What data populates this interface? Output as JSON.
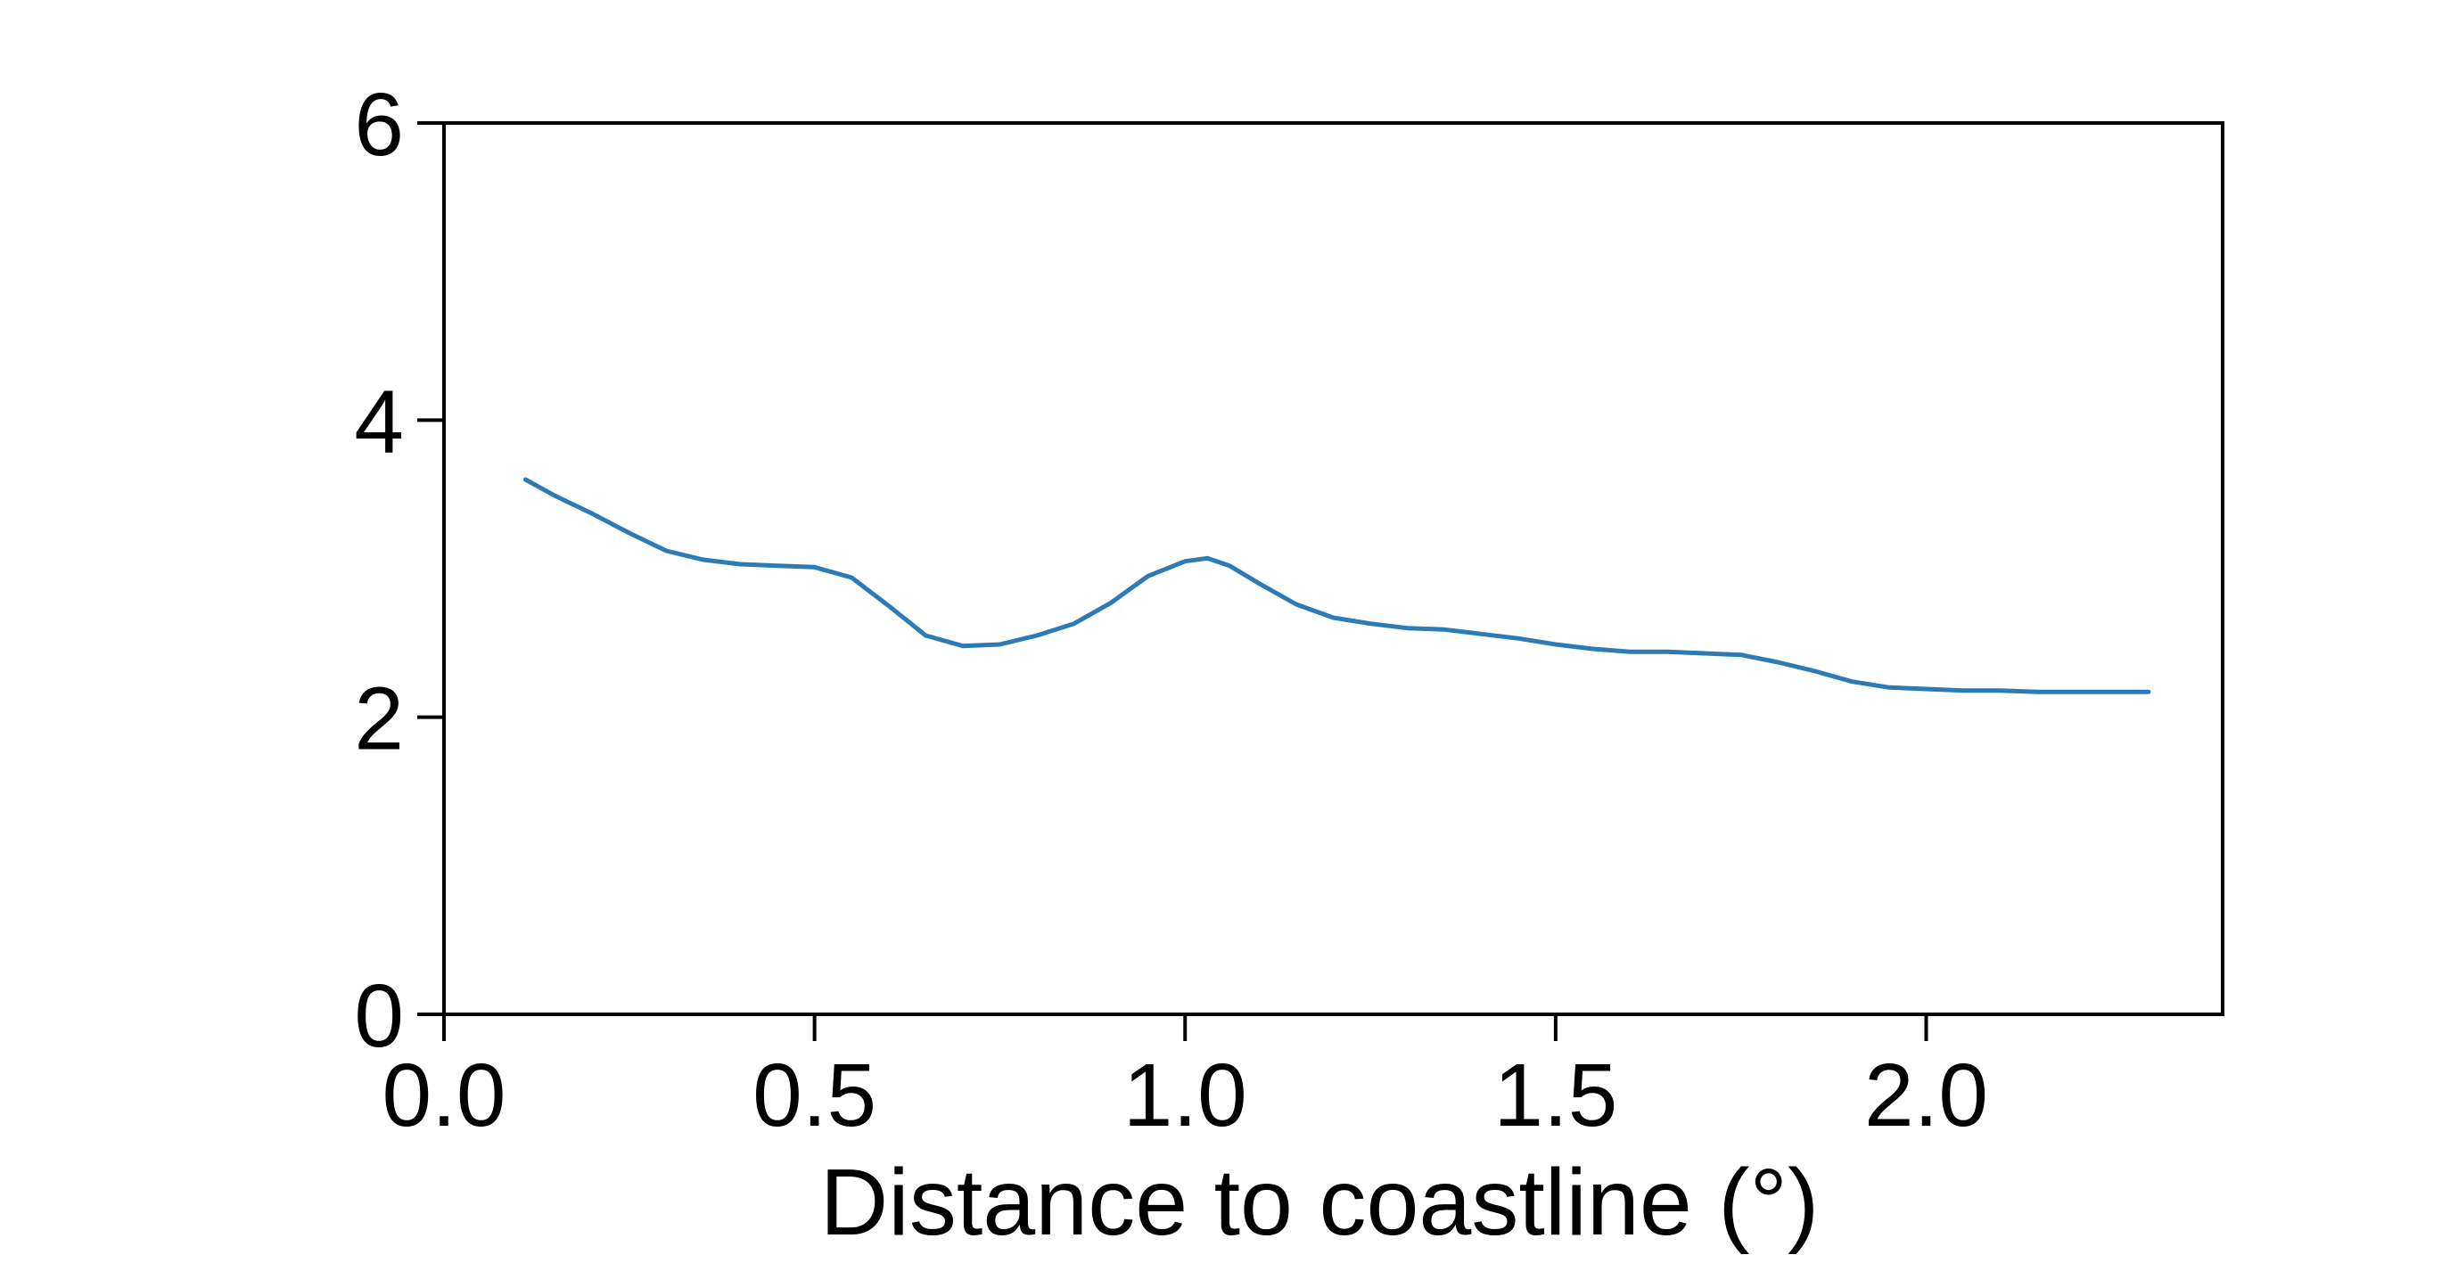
{
  "chart_data": {
    "type": "line",
    "title": "",
    "xlabel": "Distance to coastline (°)",
    "ylabel": "",
    "xlim": [
      0.0,
      2.4
    ],
    "ylim": [
      0,
      6
    ],
    "x_ticks": [
      0.0,
      0.5,
      1.0,
      1.5,
      2.0
    ],
    "x_tick_labels": [
      "0.0",
      "0.5",
      "1.0",
      "1.5",
      "2.0"
    ],
    "y_ticks": [
      0,
      2,
      4,
      6
    ],
    "y_tick_labels": [
      "0",
      "2",
      "4",
      "6"
    ],
    "grid": false,
    "colors": {
      "line": "#2c7bb6"
    },
    "series": [
      {
        "x": [
          0.11,
          0.15,
          0.2,
          0.25,
          0.3,
          0.35,
          0.4,
          0.45,
          0.5,
          0.55,
          0.6,
          0.65,
          0.7,
          0.75,
          0.8,
          0.85,
          0.9,
          0.95,
          1.0,
          1.03,
          1.06,
          1.1,
          1.15,
          1.2,
          1.25,
          1.3,
          1.35,
          1.4,
          1.45,
          1.5,
          1.55,
          1.6,
          1.65,
          1.7,
          1.75,
          1.8,
          1.85,
          1.9,
          1.95,
          2.0,
          2.05,
          2.1,
          2.15,
          2.2,
          2.25,
          2.3
        ],
        "y": [
          3.6,
          3.49,
          3.37,
          3.24,
          3.12,
          3.06,
          3.03,
          3.02,
          3.01,
          2.94,
          2.75,
          2.55,
          2.48,
          2.49,
          2.55,
          2.63,
          2.77,
          2.95,
          3.05,
          3.07,
          3.02,
          2.9,
          2.76,
          2.67,
          2.63,
          2.6,
          2.59,
          2.56,
          2.53,
          2.49,
          2.46,
          2.44,
          2.44,
          2.43,
          2.42,
          2.37,
          2.31,
          2.24,
          2.2,
          2.19,
          2.18,
          2.18,
          2.17,
          2.17,
          2.17,
          2.17
        ]
      }
    ]
  }
}
